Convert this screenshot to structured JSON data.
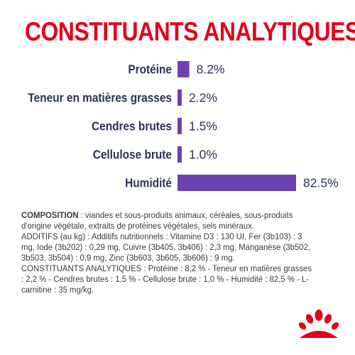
{
  "page_title": "CONSTITUANTS ANALYTIQUES",
  "colors": {
    "title": "#e2001a",
    "bar": "#6d42b0",
    "label": "#2b3256",
    "text": "#3a3a3a",
    "logo": "#e2001a"
  },
  "chart_data": {
    "type": "bar",
    "orientation": "horizontal",
    "title": "CONSTITUANTS ANALYTIQUES",
    "categories": [
      "Protéine",
      "Teneur en matières grasses",
      "Cendres brutes",
      "Cellulose brute",
      "Humidité"
    ],
    "values": [
      8.2,
      2.2,
      1.5,
      1.0,
      82.5
    ],
    "value_labels": [
      "8.2%",
      "2.2%",
      "1.5%",
      "1.0%",
      "82.5%"
    ],
    "unit": "%",
    "xlim": [
      0,
      82.5
    ],
    "grid": false
  },
  "composition": {
    "label": "COMPOSITION",
    "text": " : viandes et sous-produits animaux, céréales, sous-produits d'origine végétale, extraits de protéines végétales, sels minéraux.",
    "additives": "ADDITIFS (au kg) : Additifs nutritionnels : Vitamine D3 : 130 UI, Fer (3b103) : 3 mg, Iode (3b202) : 0,29 mg, Cuivre (3b405, 3b406) : 2,3 mg, Manganèse (3b502, 3b503, 3b504) : 0,9 mg, Zinc (3b603, 3b605, 3b606) : 9 mg.",
    "constituents": "CONSTITUANTS ANALYTIQUES : Protéine : 8,2 % - Teneur en matières grasses : 2,2 % - Cendres brutes : 1,5 % - Cellulose brute : 1,0 % - Humidité : 82,5 % - L-carnitine : 35 mg/kg."
  },
  "logo": {
    "icon": "royal-canin-crown-icon"
  }
}
